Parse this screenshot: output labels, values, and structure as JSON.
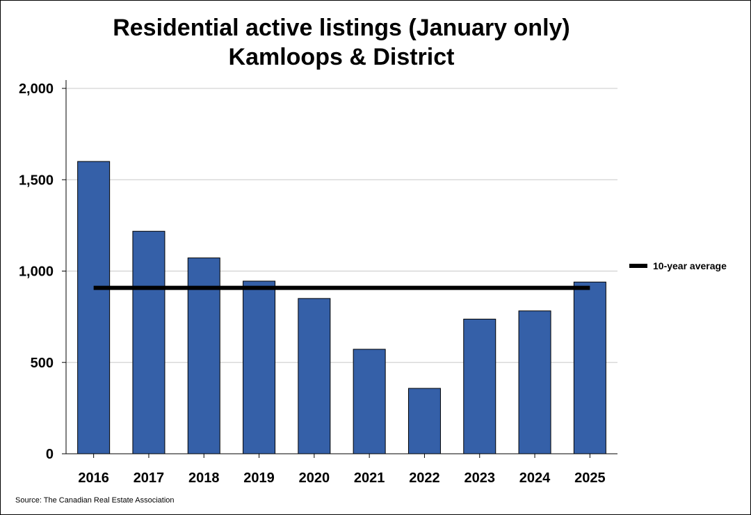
{
  "chart_data": {
    "type": "bar",
    "title": "Residential active listings (January only)",
    "subtitle": "Kamloops & District",
    "categories": [
      "2016",
      "2017",
      "2018",
      "2019",
      "2020",
      "2021",
      "2022",
      "2023",
      "2024",
      "2025"
    ],
    "series": [
      {
        "values": [
          1600,
          1218,
          1072,
          945,
          850,
          572,
          358,
          737,
          782,
          940
        ],
        "color": "#3560A8"
      }
    ],
    "reference_line": {
      "name": "10-year average",
      "value": 908,
      "color": "#000000"
    },
    "ylim": [
      0,
      2000
    ],
    "yticks": [
      0,
      500,
      1000,
      1500,
      2000
    ],
    "ytick_labels": [
      "0",
      "500",
      "1,000",
      "1,500",
      "2,000"
    ],
    "grid": true,
    "legend": "right",
    "source": "Source: The Canadian Real Estate Association"
  }
}
